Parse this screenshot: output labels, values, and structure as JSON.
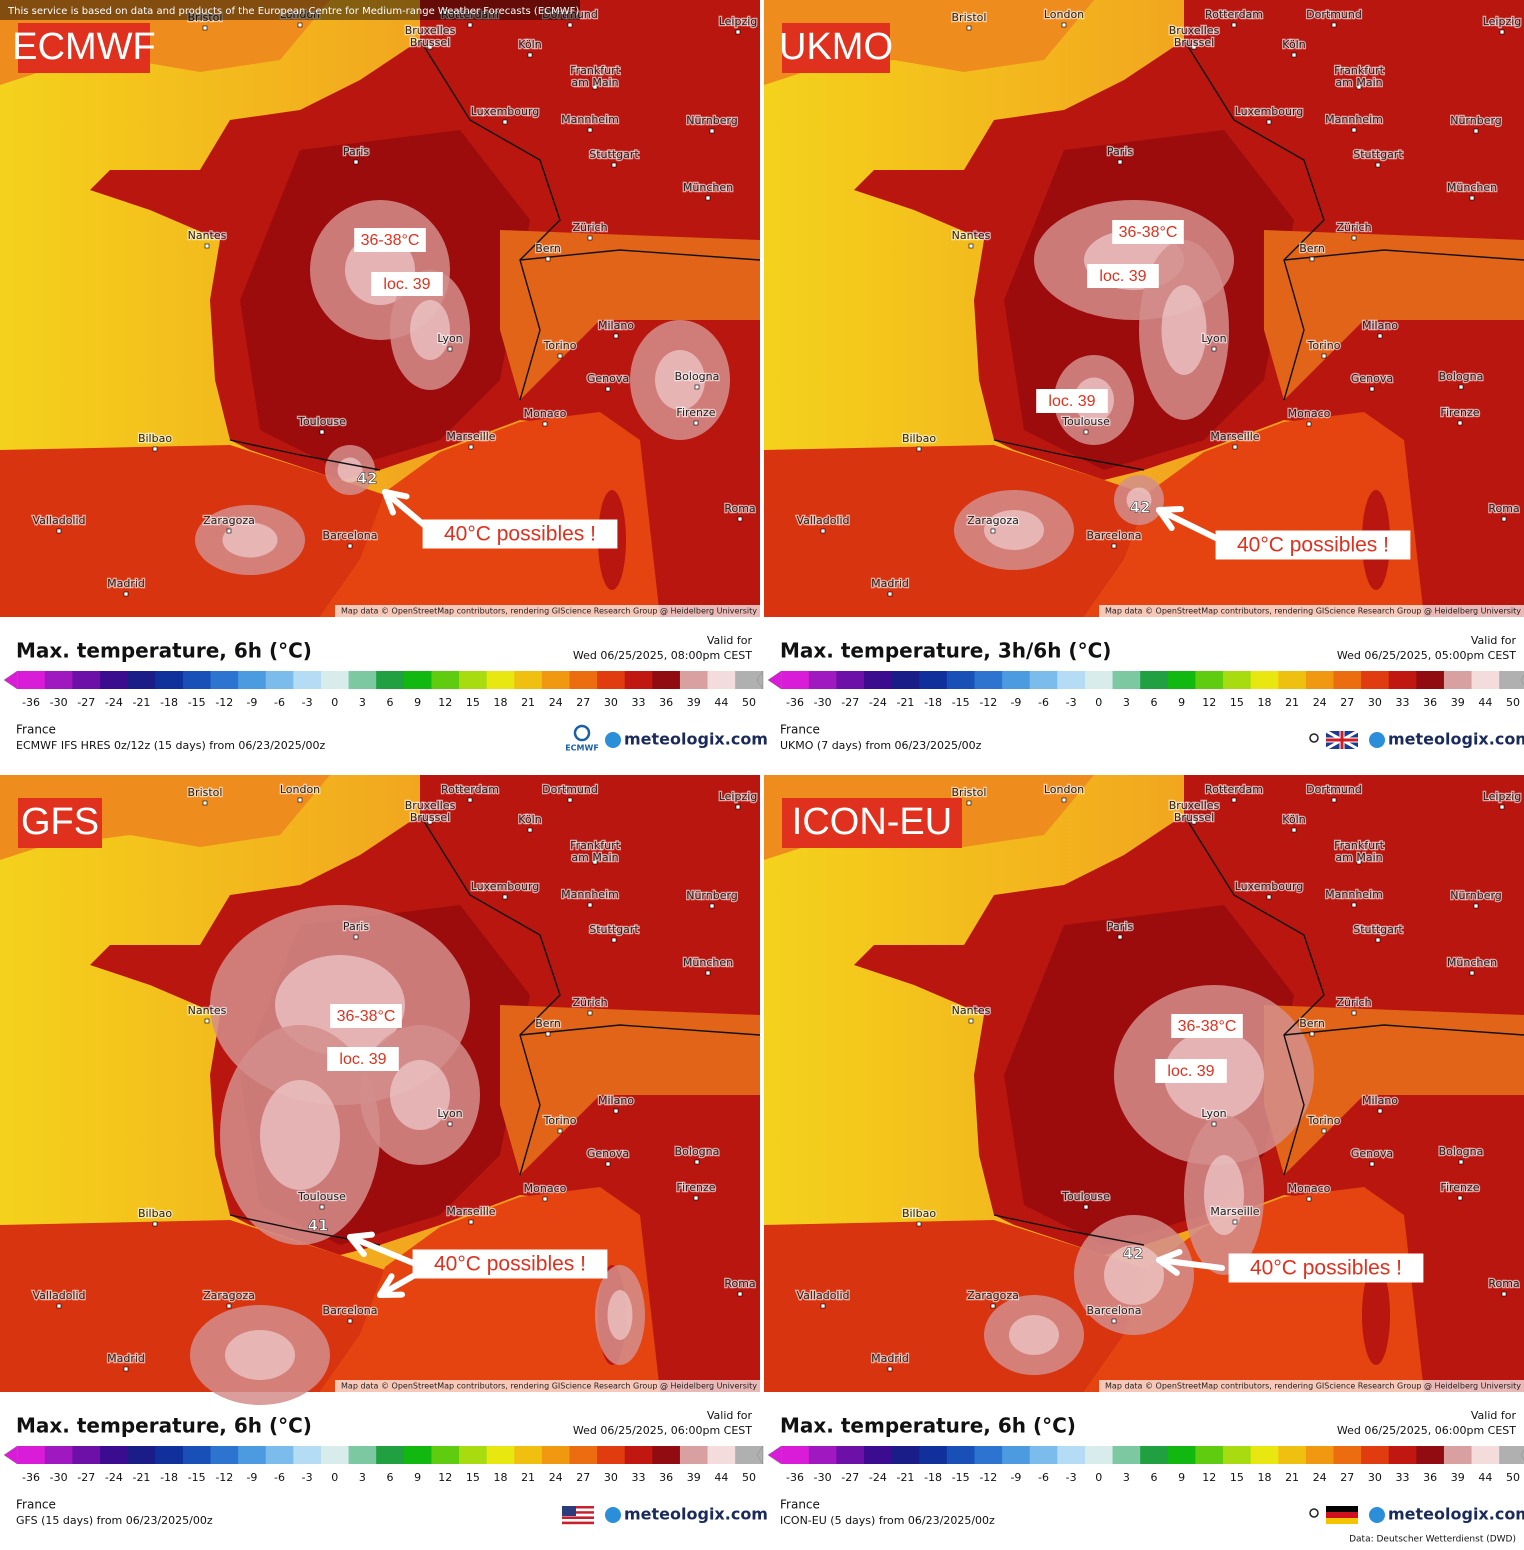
{
  "banner": "This service is based on data and products of the European Centre for Medium-range Weather Forecasts (ECMWF)",
  "brand": "meteologix.com",
  "attribution": "Map data © OpenStreetMap contributors, rendering GIScience Research Group @ Heidelberg University",
  "valid_label": "Valid for",
  "colorbar_ticks": [
    -36,
    -30,
    -27,
    -24,
    -21,
    -18,
    -15,
    -12,
    -9,
    -6,
    -3,
    0,
    3,
    6,
    9,
    12,
    15,
    18,
    21,
    24,
    27,
    30,
    33,
    36,
    39,
    44,
    50
  ],
  "cities": [
    "London",
    "Bristol",
    "Rotterdam",
    "Dortmund",
    "Leipzig",
    [
      "Bruxelles",
      "Brussel"
    ],
    "Köln",
    [
      "Frankfurt",
      "am Main"
    ],
    "Luxembourg",
    "Mannheim",
    "Nürnberg",
    "Paris",
    "Stuttgart",
    "München",
    "Nantes",
    "Bern",
    "Zürich",
    "Lyon",
    "Milano",
    "Torino",
    "Genova",
    "Bologna",
    "Bilbao",
    "Toulouse",
    "Monaco",
    "Marseille",
    "Firenze",
    "Valladolid",
    "Zaragoza",
    "Barcelona",
    "Madrid",
    "Roma"
  ],
  "panels": [
    {
      "model": "ECMWF",
      "annotations": [
        "36-38°C",
        "loc. 39",
        "40°C possibles !"
      ],
      "peak": "42",
      "title": "Max. temperature, 6h (°C)",
      "valid_time": "Wed 06/25/2025, 08:00pm CEST",
      "region": "France",
      "run": "ECMWF IFS HRES 0z/12z (15 days) from 06/23/2025/00z",
      "logo_text": "ECMWF"
    },
    {
      "model": "UKMO",
      "annotations": [
        "36-38°C",
        "loc. 39",
        "loc. 39",
        "40°C possibles !"
      ],
      "peak": "42",
      "title": "Max. temperature, 3h/6h (°C)",
      "valid_time": "Wed 06/25/2025, 05:00pm CEST",
      "region": "France",
      "run": "UKMO (7 days) from 06/23/2025/00z"
    },
    {
      "model": "GFS",
      "annotations": [
        "36-38°C",
        "loc. 39",
        "40°C possibles !"
      ],
      "peak": "41",
      "title": "Max. temperature, 6h (°C)",
      "valid_time": "Wed 06/25/2025, 06:00pm CEST",
      "region": "France",
      "run": "GFS (15 days) from 06/23/2025/00z"
    },
    {
      "model": "ICON-EU",
      "annotations": [
        "36-38°C",
        "loc. 39",
        "40°C possibles !"
      ],
      "peak": "42",
      "title": "Max. temperature, 6h (°C)",
      "valid_time": "Wed 06/25/2025, 06:00pm CEST",
      "region": "France",
      "run": "ICON-EU (5 days) from 06/23/2025/00z",
      "credit": "Data: Deutscher Wetterdienst (DWD)"
    }
  ]
}
